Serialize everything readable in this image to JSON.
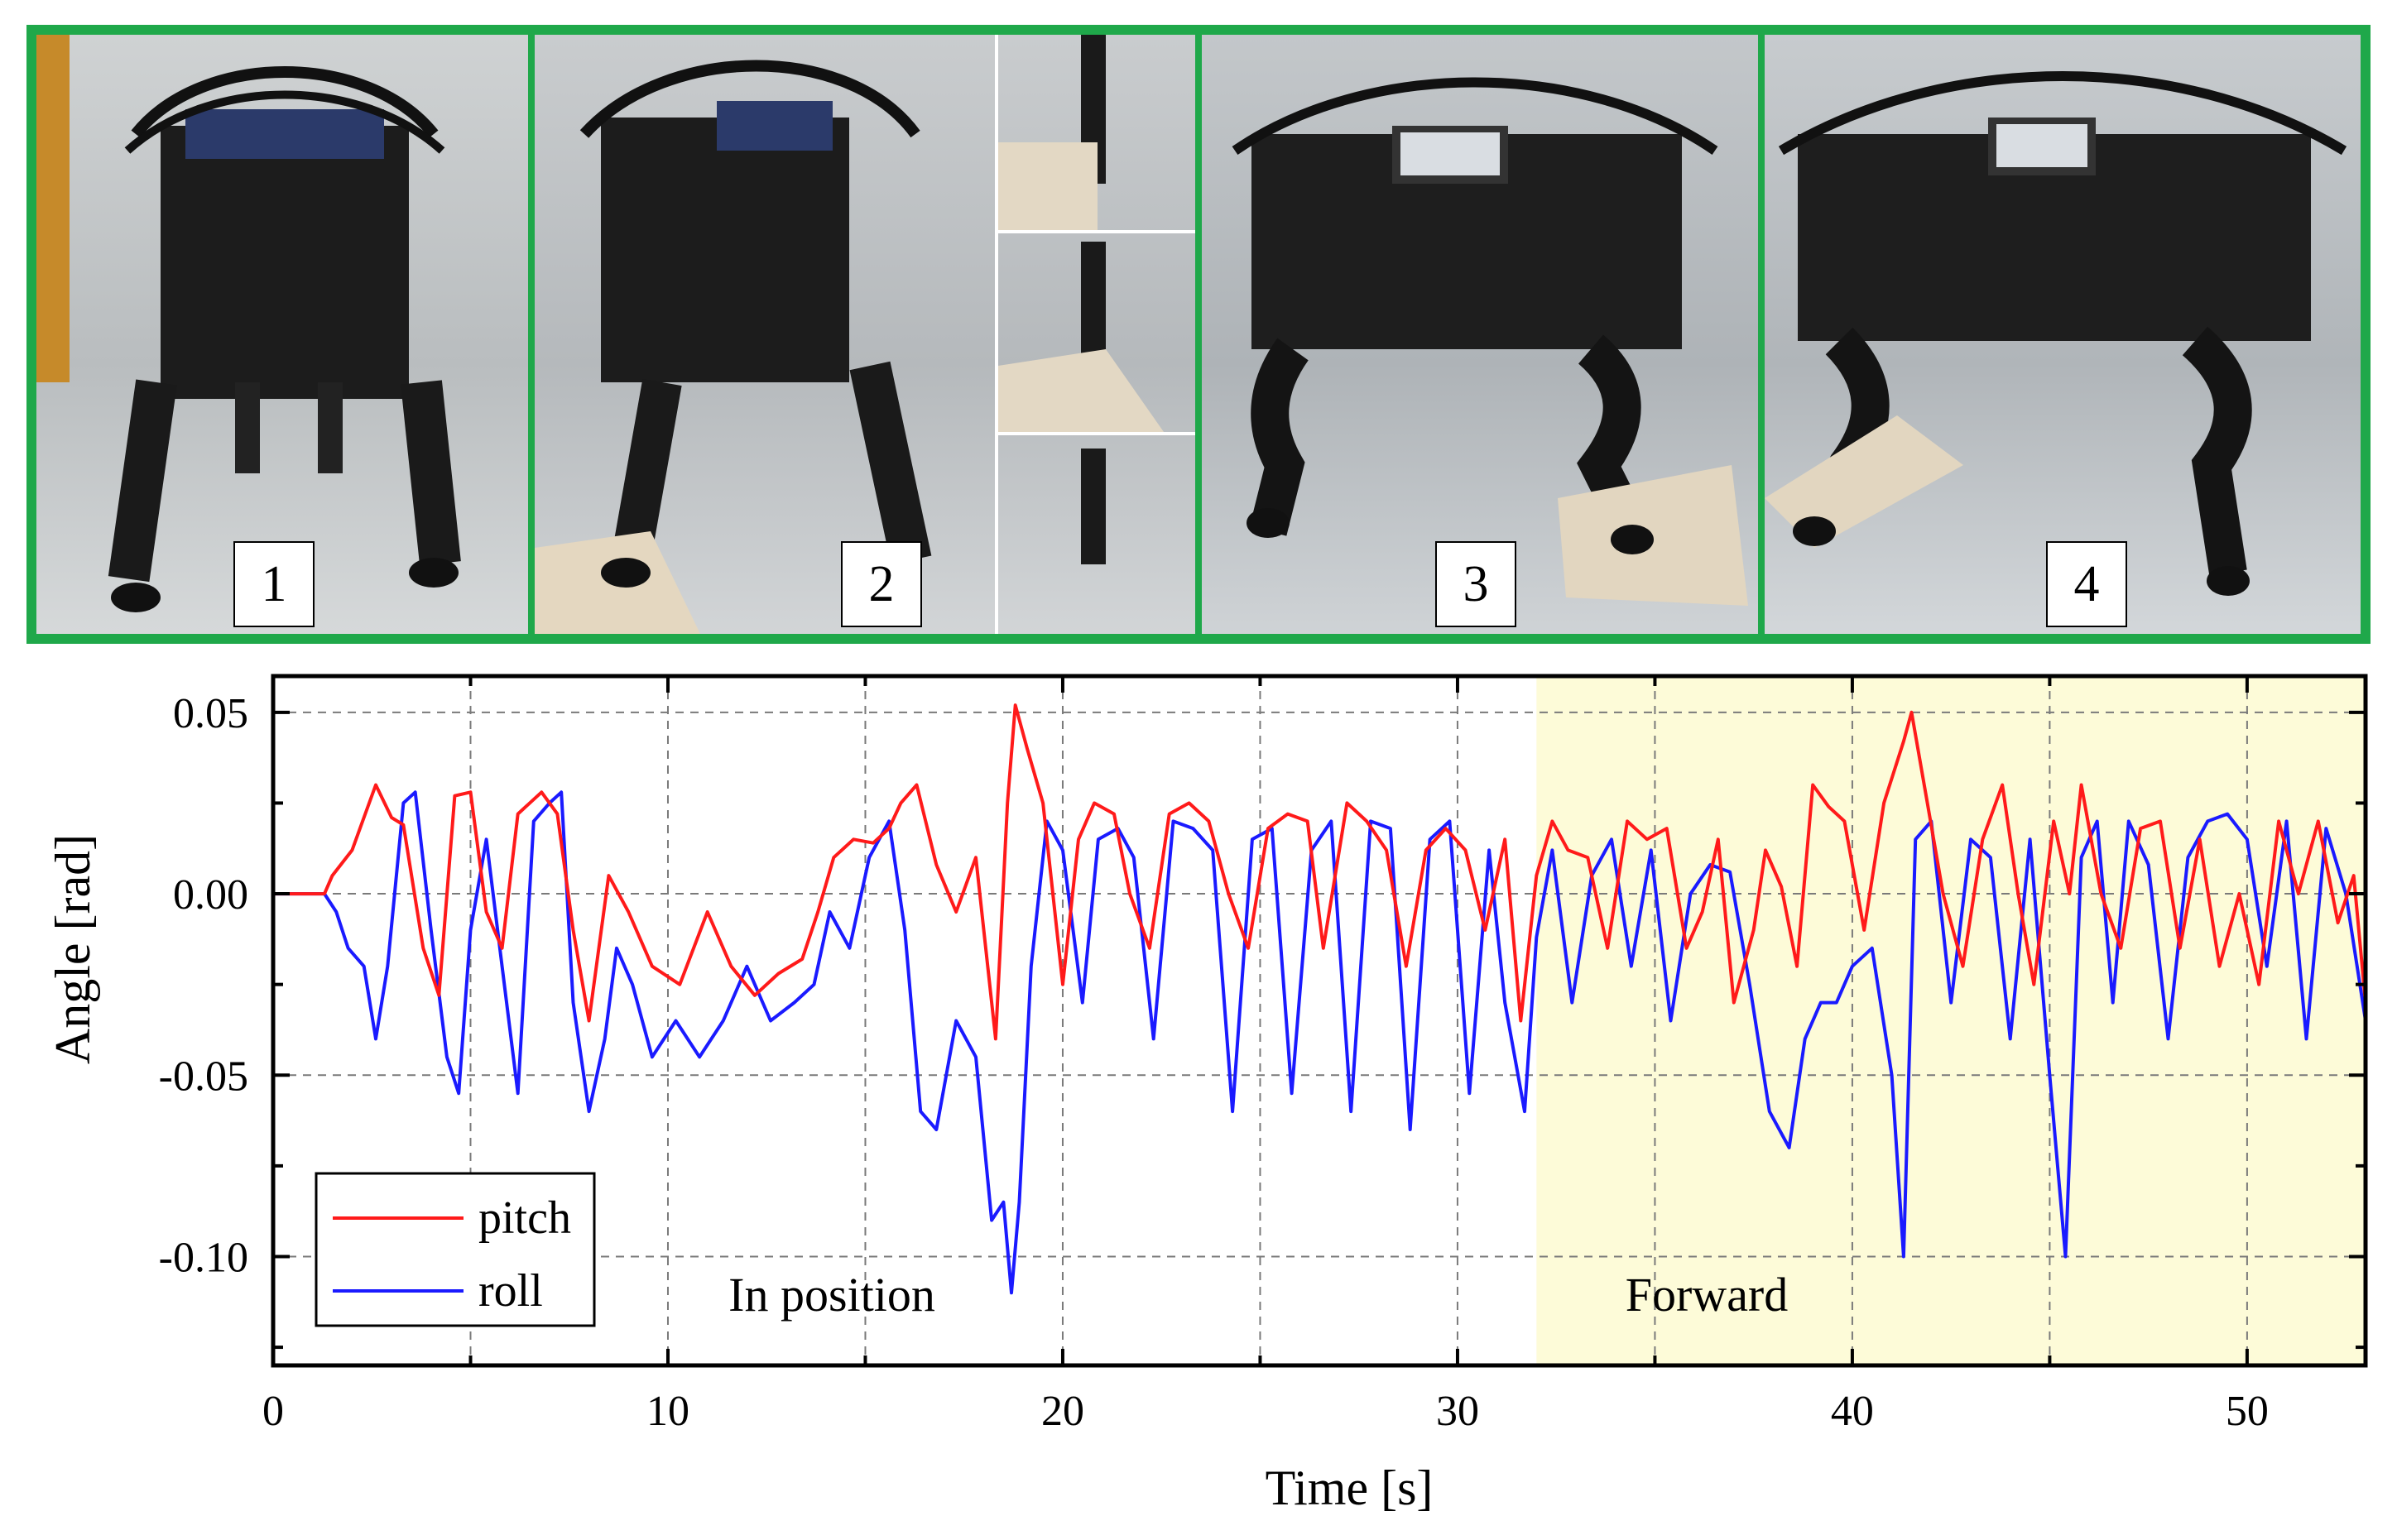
{
  "photos": {
    "frame_color": "#1fa84a",
    "panels": [
      {
        "label": "1"
      },
      {
        "label": "2"
      },
      {
        "label": "3"
      },
      {
        "label": "4"
      }
    ]
  },
  "chart_data": {
    "type": "line",
    "title": "",
    "xlabel": "Time [s]",
    "ylabel": "Angle [rad]",
    "xlim": [
      0,
      53
    ],
    "ylim": [
      -0.13,
      0.06
    ],
    "xticks": [
      0,
      10,
      20,
      30,
      40,
      50
    ],
    "xtick_labels": [
      "0",
      "10",
      "20",
      "30",
      "40",
      "50"
    ],
    "yticks": [
      0.05,
      0.0,
      -0.05,
      -0.1
    ],
    "ytick_labels": [
      "0.05",
      "0.00",
      "-0.05",
      "-0.10"
    ],
    "grid": true,
    "legend": {
      "position": "bottom-left"
    },
    "shaded_region": {
      "x": [
        32,
        53
      ],
      "color": "#fdfbd8"
    },
    "annotations": [
      {
        "text": "In position",
        "x": 14,
        "y": -0.112
      },
      {
        "text": "Forward",
        "x": 36,
        "y": -0.112
      }
    ],
    "series": [
      {
        "name": "pitch",
        "color": "#ff1a1a",
        "x": [
          0,
          1.3,
          1.5,
          2.0,
          2.6,
          3.0,
          3.3,
          3.8,
          4.2,
          4.6,
          5.0,
          5.4,
          5.8,
          6.2,
          6.8,
          7.2,
          7.6,
          8.0,
          8.5,
          9.0,
          9.6,
          10.3,
          11.0,
          11.6,
          12.2,
          12.8,
          13.4,
          13.8,
          14.2,
          14.7,
          15.2,
          15.6,
          15.9,
          16.3,
          16.8,
          17.3,
          17.8,
          18.3,
          18.6,
          18.8,
          19.1,
          19.5,
          20.0,
          20.4,
          20.8,
          21.3,
          21.7,
          22.2,
          22.7,
          23.2,
          23.7,
          24.2,
          24.7,
          25.2,
          25.7,
          26.2,
          26.6,
          27.2,
          27.7,
          28.2,
          28.7,
          29.2,
          29.7,
          30.2,
          30.7,
          31.2,
          31.6,
          32.0,
          32.4,
          32.8,
          33.3,
          33.8,
          34.3,
          34.8,
          35.3,
          35.8,
          36.2,
          36.6,
          37.0,
          37.5,
          37.8,
          38.2,
          38.6,
          39.0,
          39.4,
          39.8,
          40.3,
          40.8,
          41.3,
          41.5,
          41.9,
          42.3,
          42.8,
          43.3,
          43.8,
          44.2,
          44.6,
          45.1,
          45.5,
          45.8,
          46.3,
          46.8,
          47.3,
          47.8,
          48.3,
          48.8,
          49.3,
          49.8,
          50.3,
          50.8,
          51.3,
          51.8,
          52.3,
          52.7,
          53.0
        ],
        "y": [
          0.0,
          0.0,
          0.005,
          0.012,
          0.03,
          0.021,
          0.019,
          -0.015,
          -0.028,
          0.027,
          0.028,
          -0.005,
          -0.015,
          0.022,
          0.028,
          0.022,
          -0.01,
          -0.035,
          0.005,
          -0.005,
          -0.02,
          -0.025,
          -0.005,
          -0.02,
          -0.028,
          -0.022,
          -0.018,
          -0.005,
          0.01,
          0.015,
          0.014,
          0.018,
          0.025,
          0.03,
          0.008,
          -0.005,
          0.01,
          -0.04,
          0.025,
          0.052,
          0.04,
          0.025,
          -0.025,
          0.015,
          0.025,
          0.022,
          0.0,
          -0.015,
          0.022,
          0.025,
          0.02,
          0.0,
          -0.015,
          0.018,
          0.022,
          0.02,
          -0.015,
          0.025,
          0.02,
          0.012,
          -0.02,
          0.012,
          0.018,
          0.012,
          -0.01,
          0.015,
          -0.035,
          0.005,
          0.02,
          0.012,
          0.01,
          -0.015,
          0.02,
          0.015,
          0.018,
          -0.015,
          -0.005,
          0.015,
          -0.03,
          -0.01,
          0.012,
          0.002,
          -0.02,
          0.03,
          0.024,
          0.02,
          -0.01,
          0.025,
          0.042,
          0.05,
          0.025,
          0.0,
          -0.02,
          0.015,
          0.03,
          0.0,
          -0.025,
          0.02,
          0.0,
          0.03,
          0.0,
          -0.015,
          0.018,
          0.02,
          -0.015,
          0.015,
          -0.02,
          0.0,
          -0.025,
          0.02,
          0.0,
          0.02,
          -0.008,
          0.005,
          -0.03
        ]
      },
      {
        "name": "roll",
        "color": "#1a1aff",
        "x": [
          0,
          1.3,
          1.6,
          1.9,
          2.3,
          2.6,
          2.9,
          3.3,
          3.6,
          4.0,
          4.4,
          4.7,
          5.0,
          5.4,
          5.8,
          6.2,
          6.6,
          7.0,
          7.3,
          7.6,
          8.0,
          8.4,
          8.7,
          9.1,
          9.6,
          10.2,
          10.8,
          11.4,
          12.0,
          12.6,
          13.2,
          13.7,
          14.1,
          14.6,
          15.1,
          15.6,
          16.0,
          16.4,
          16.8,
          17.3,
          17.8,
          18.2,
          18.5,
          18.7,
          18.9,
          19.2,
          19.6,
          20.0,
          20.5,
          20.9,
          21.4,
          21.8,
          22.3,
          22.8,
          23.3,
          23.8,
          24.3,
          24.8,
          25.3,
          25.8,
          26.3,
          26.8,
          27.3,
          27.8,
          28.3,
          28.8,
          29.3,
          29.8,
          30.3,
          30.8,
          31.2,
          31.7,
          32.0,
          32.4,
          32.9,
          33.4,
          33.9,
          34.4,
          34.9,
          35.4,
          35.9,
          36.4,
          36.9,
          37.4,
          37.9,
          38.4,
          38.8,
          39.2,
          39.6,
          40.0,
          40.5,
          41.0,
          41.3,
          41.6,
          42.0,
          42.5,
          43.0,
          43.5,
          44.0,
          44.5,
          45.0,
          45.4,
          45.8,
          46.2,
          46.6,
          47.0,
          47.5,
          48.0,
          48.5,
          49.0,
          49.5,
          50.0,
          50.5,
          51.0,
          51.5,
          52.0,
          52.5,
          53.0
        ],
        "y": [
          0.0,
          0.0,
          -0.005,
          -0.015,
          -0.02,
          -0.04,
          -0.02,
          0.025,
          0.028,
          -0.01,
          -0.045,
          -0.055,
          -0.01,
          0.015,
          -0.02,
          -0.055,
          0.02,
          0.025,
          0.028,
          -0.03,
          -0.06,
          -0.04,
          -0.015,
          -0.025,
          -0.045,
          -0.035,
          -0.045,
          -0.035,
          -0.02,
          -0.035,
          -0.03,
          -0.025,
          -0.005,
          -0.015,
          0.01,
          0.02,
          -0.01,
          -0.06,
          -0.065,
          -0.035,
          -0.045,
          -0.09,
          -0.085,
          -0.11,
          -0.085,
          -0.02,
          0.02,
          0.012,
          -0.03,
          0.015,
          0.018,
          0.01,
          -0.04,
          0.02,
          0.018,
          0.012,
          -0.06,
          0.015,
          0.018,
          -0.055,
          0.012,
          0.02,
          -0.06,
          0.02,
          0.018,
          -0.065,
          0.015,
          0.02,
          -0.055,
          0.012,
          -0.03,
          -0.06,
          -0.012,
          0.012,
          -0.03,
          0.005,
          0.015,
          -0.02,
          0.012,
          -0.035,
          0.0,
          0.008,
          0.006,
          -0.025,
          -0.06,
          -0.07,
          -0.04,
          -0.03,
          -0.03,
          -0.02,
          -0.015,
          -0.05,
          -0.1,
          0.015,
          0.02,
          -0.03,
          0.015,
          0.01,
          -0.04,
          0.015,
          -0.05,
          -0.1,
          0.01,
          0.02,
          -0.03,
          0.02,
          0.008,
          -0.04,
          0.01,
          0.02,
          0.022,
          0.015,
          -0.02,
          0.02,
          -0.04,
          0.018,
          0.0,
          -0.035
        ]
      }
    ]
  }
}
